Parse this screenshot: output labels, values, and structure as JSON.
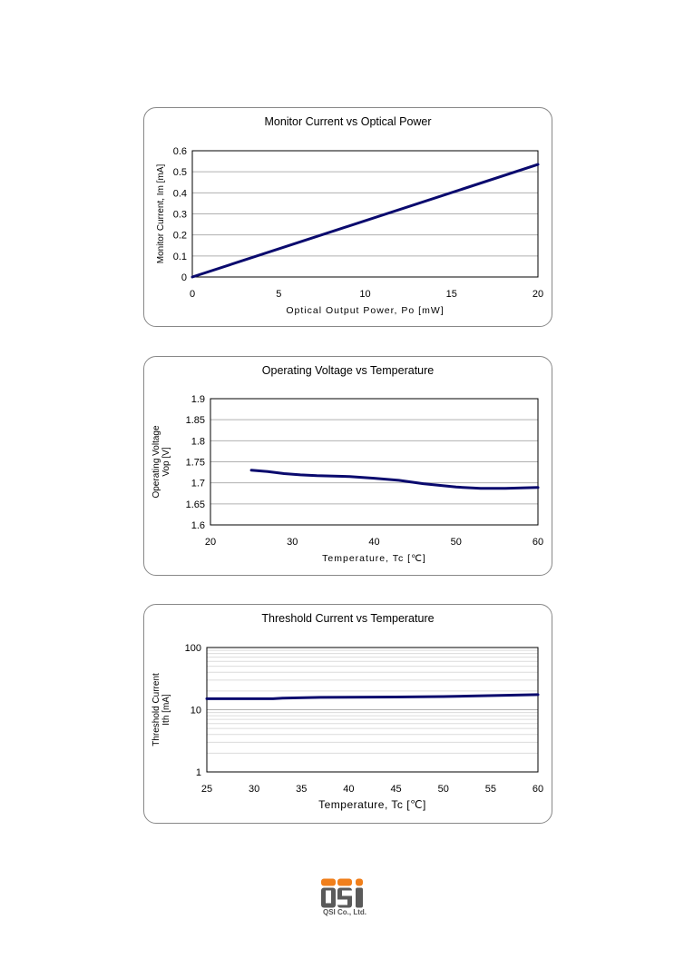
{
  "colors": {
    "line": "#0a0a6e",
    "grid": "#b0b0b0",
    "logo_orange": "#f07f1b",
    "logo_gray": "#5a5a5a"
  },
  "logo": {
    "text": "QSI Co., Ltd.",
    "mark": "QSI"
  },
  "chart_data": [
    {
      "type": "line",
      "title": "Monitor Current vs Optical Power",
      "xlabel": "Optical Output Power, Po [mW]",
      "ylabel": "Monitor Current, Im [mA]",
      "xlim": [
        0,
        20
      ],
      "ylim": [
        0,
        0.6
      ],
      "xticks": [
        0,
        5,
        10,
        15,
        20
      ],
      "yticks": [
        0,
        0.1,
        0.2,
        0.3,
        0.4,
        0.5,
        0.6
      ],
      "yscale": "linear",
      "grid": true,
      "series": [
        {
          "name": "Im",
          "x": [
            0,
            20
          ],
          "y": [
            0,
            0.535
          ]
        }
      ]
    },
    {
      "type": "line",
      "title": "Operating Voltage vs Temperature",
      "xlabel": "Temperature, Tc [℃]",
      "ylabel": [
        "Operating Voltage",
        "Vop [V]"
      ],
      "xlim": [
        20,
        60
      ],
      "ylim": [
        1.6,
        1.9
      ],
      "xticks": [
        20,
        30,
        40,
        50,
        60
      ],
      "yticks": [
        1.6,
        1.65,
        1.7,
        1.75,
        1.8,
        1.85,
        1.9
      ],
      "yscale": "linear",
      "grid": true,
      "series": [
        {
          "name": "Vop",
          "x": [
            25,
            27,
            29,
            31,
            33,
            37,
            40,
            43,
            46,
            50,
            53,
            56,
            60
          ],
          "y": [
            1.73,
            1.727,
            1.722,
            1.719,
            1.717,
            1.715,
            1.711,
            1.706,
            1.698,
            1.69,
            1.687,
            1.687,
            1.689
          ]
        }
      ]
    },
    {
      "type": "line",
      "title": "Threshold Current vs Temperature",
      "xlabel": "Temperature, Tc [℃]",
      "ylabel": [
        "Threshold Current",
        "Ith [mA]"
      ],
      "xlim": [
        25,
        60
      ],
      "ylim": [
        1,
        100
      ],
      "xticks": [
        25,
        30,
        35,
        40,
        45,
        50,
        55,
        60
      ],
      "yticks": [
        1,
        10,
        100
      ],
      "yscale": "log",
      "grid": true,
      "series": [
        {
          "name": "Ith",
          "x": [
            25,
            32,
            33,
            37,
            45,
            50,
            60
          ],
          "y": [
            15,
            15,
            15.3,
            15.8,
            16,
            16.3,
            17.5
          ]
        }
      ]
    }
  ]
}
